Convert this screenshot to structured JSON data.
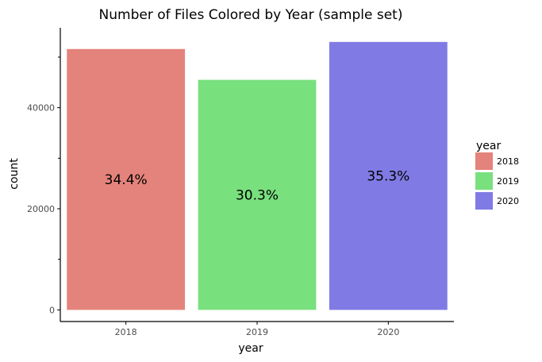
{
  "chart_data": {
    "type": "bar",
    "title": "Number of Files Colored by Year (sample set)",
    "xlabel": "year",
    "ylabel": "count",
    "categories": [
      "2018",
      "2019",
      "2020"
    ],
    "values": [
      51600,
      45500,
      53000
    ],
    "bar_labels": [
      "34.4%",
      "30.3%",
      "35.3%"
    ],
    "colors": [
      "#e4837b",
      "#79e07e",
      "#807be4"
    ],
    "ylim": [
      -2300,
      55800
    ],
    "y_ticks": [
      0,
      20000,
      40000
    ],
    "y_tick_labels": [
      "0",
      "20000",
      "40000"
    ],
    "y_minor_ticks": [
      10000,
      30000,
      50000
    ],
    "grid": false,
    "legend": {
      "title": "year",
      "position": "right",
      "items": [
        "2018",
        "2019",
        "2020"
      ]
    }
  }
}
